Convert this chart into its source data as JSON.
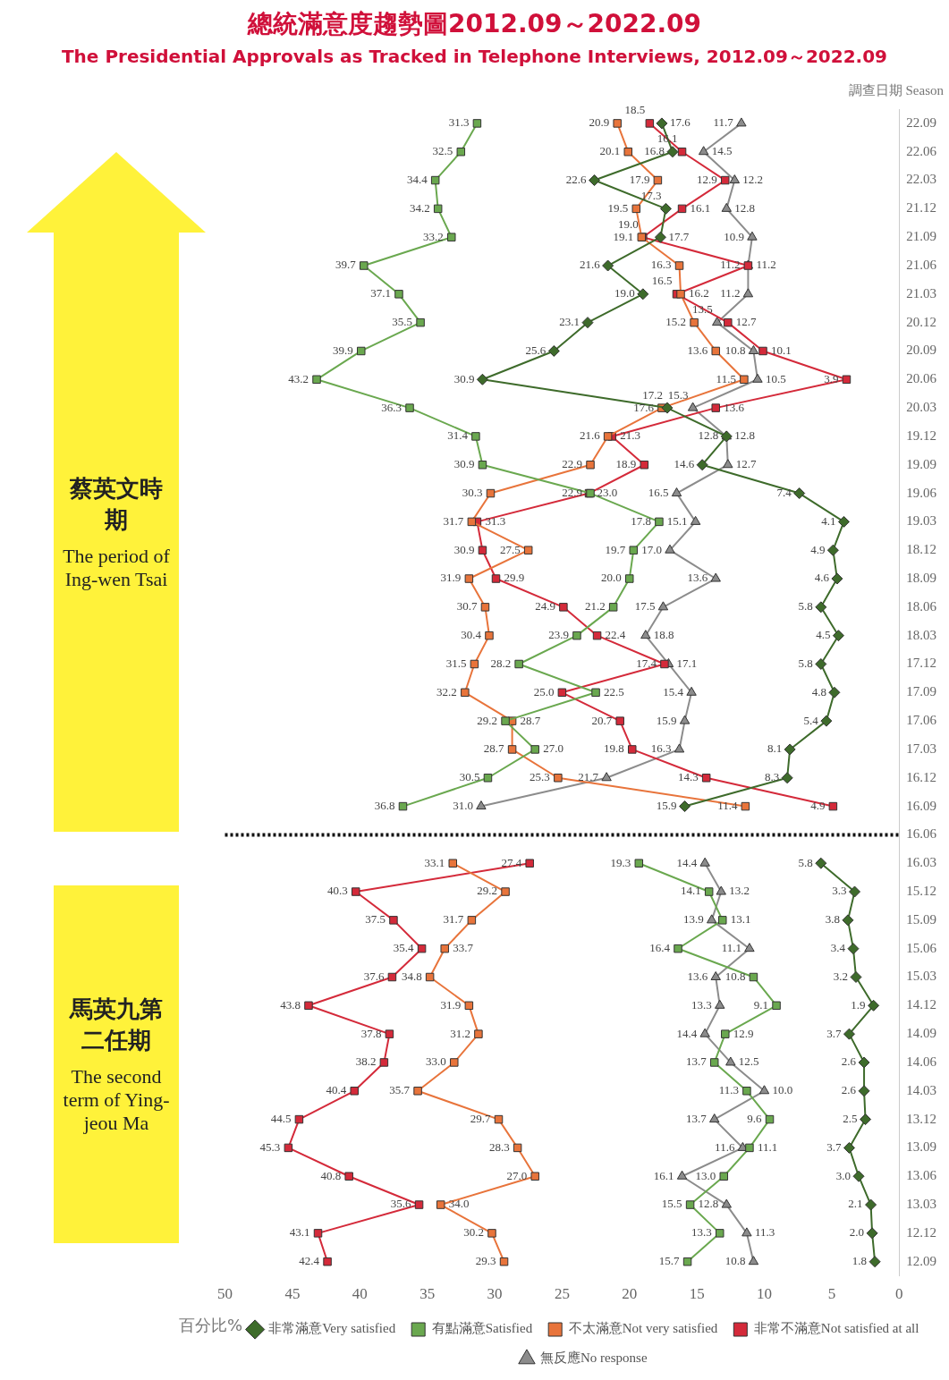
{
  "chart_data": {
    "type": "line",
    "orientation": "horizontal",
    "title": "總統滿意度趨勢圖2012.09～2022.09",
    "subtitle": "The Presidential Approvals as Tracked in Telephone Interviews, 2012.09～2022.09",
    "xlabel": "百分比%",
    "ylabel": "調查日期 Season",
    "categories": [
      "22.09",
      "22.06",
      "22.03",
      "21.12",
      "21.09",
      "21.06",
      "21.03",
      "20.12",
      "20.09",
      "20.06",
      "20.03",
      "19.12",
      "19.09",
      "19.06",
      "19.03",
      "18.12",
      "18.09",
      "18.06",
      "18.03",
      "17.12",
      "17.09",
      "17.06",
      "17.03",
      "16.12",
      "16.09",
      "16.06",
      "16.03",
      "15.12",
      "15.09",
      "15.06",
      "15.03",
      "14.12",
      "14.09",
      "14.06",
      "14.03",
      "13.12",
      "13.09",
      "13.06",
      "13.03",
      "12.12",
      "12.09"
    ],
    "series": [
      {
        "name": "非常滿意Very satisfied",
        "color": "#3e6b2b",
        "marker": "diamond",
        "values": [
          17.6,
          16.8,
          22.6,
          17.3,
          17.7,
          21.6,
          19.0,
          23.1,
          25.6,
          30.9,
          17.2,
          12.8,
          14.6,
          7.4,
          4.1,
          4.9,
          4.6,
          5.8,
          4.5,
          5.8,
          4.8,
          5.4,
          8.1,
          8.3,
          15.9,
          null,
          5.8,
          3.3,
          3.8,
          3.4,
          3.2,
          1.9,
          3.7,
          2.6,
          2.6,
          2.5,
          3.7,
          3.0,
          2.1,
          2.0,
          1.8
        ],
        "value_labels": [
          "17.6",
          "16.8",
          "22.6",
          "17.3",
          "17.7",
          "21.6",
          "19.0",
          "23.1",
          "25.6",
          "30.9",
          "17.2",
          "12.8",
          "14.6",
          "7.4",
          "4.1",
          "4.9",
          "4.6",
          "5.8",
          "4.5",
          "5.8",
          "4.8",
          "5.4",
          "8.1",
          "8.3",
          "15.9",
          null,
          "5.8",
          "3.3",
          "3.8",
          "3.4",
          "3.2",
          "1.9",
          "3.7",
          "2.6",
          "2.6",
          "2.5",
          "3.7",
          "3.0",
          "2.1",
          "2.0",
          "1.8"
        ]
      },
      {
        "name": "有點滿意Satisfied",
        "color": "#6aa84f",
        "marker": "square",
        "values": [
          31.3,
          32.5,
          34.4,
          34.2,
          33.2,
          39.7,
          37.1,
          35.5,
          39.9,
          43.2,
          36.3,
          31.4,
          30.9,
          22.9,
          17.8,
          19.7,
          20.0,
          21.2,
          23.9,
          28.2,
          22.5,
          29.2,
          27.0,
          30.5,
          36.8,
          null,
          19.3,
          14.1,
          13.1,
          16.4,
          10.8,
          9.1,
          12.9,
          13.7,
          11.3,
          9.6,
          11.1,
          13.0,
          15.5,
          13.3,
          15.7
        ],
        "value_labels": [
          "31.3",
          "32.5",
          "34.4",
          "34.2",
          "33.2",
          "39.7",
          "37.1",
          "35.5",
          "39.9",
          "43.2",
          "36.3",
          "31.4",
          "30.9",
          "22.9",
          "17.8",
          "19.7",
          "20.0",
          "21.2",
          "23.9",
          "28.2",
          "22.5",
          "29.2",
          "27.0",
          "30.5",
          "36.8",
          null,
          "19.3",
          "14.1",
          "13.1",
          "16.4",
          "10.8",
          "9.1",
          "12.9",
          "13.7",
          "11.3",
          "9.6",
          "11.1",
          "13.0",
          "15.5",
          "13.3",
          "15.7"
        ]
      },
      {
        "name": "不太滿意Not very satisfied",
        "color": "#e8743b",
        "marker": "square",
        "values": [
          20.9,
          20.1,
          17.9,
          19.5,
          19.1,
          16.3,
          16.2,
          15.2,
          13.6,
          11.5,
          17.6,
          21.6,
          22.9,
          30.3,
          31.7,
          27.5,
          31.9,
          30.7,
          30.4,
          31.5,
          32.2,
          28.7,
          28.7,
          25.3,
          11.4,
          null,
          33.1,
          29.2,
          31.7,
          33.7,
          34.8,
          31.9,
          31.2,
          33.0,
          35.7,
          29.7,
          28.3,
          27.0,
          34.0,
          30.2,
          29.3
        ],
        "value_labels": [
          "20.9",
          "20.1",
          "17.9",
          "19.5",
          "19.1",
          "16.3",
          "16.2",
          "15.2",
          "13.6",
          "11.5",
          "17.6",
          "21.6",
          "22.9",
          "30.3",
          "31.7",
          "27.5",
          "31.9",
          "30.7",
          "30.4",
          "31.5",
          "32.2",
          "28.7",
          "28.7",
          "25.3",
          "11.4",
          null,
          "33.1",
          "29.2",
          "31.7",
          "33.7",
          "34.8",
          "31.9",
          "31.2",
          "33.0",
          "35.7",
          "29.7",
          "28.3",
          "27.0",
          "34.0",
          "30.2",
          "29.3"
        ]
      },
      {
        "name": "非常不滿意Not satisfied at all",
        "color": "#d42a3a",
        "marker": "square",
        "values": [
          18.5,
          16.1,
          12.9,
          16.1,
          19.0,
          11.2,
          16.5,
          12.7,
          10.1,
          3.9,
          13.6,
          21.3,
          18.9,
          23.0,
          31.3,
          30.9,
          29.9,
          24.9,
          22.4,
          17.4,
          25.0,
          20.7,
          19.8,
          14.3,
          4.9,
          null,
          27.4,
          40.3,
          37.5,
          35.4,
          37.6,
          43.8,
          37.8,
          38.2,
          40.4,
          44.5,
          45.3,
          40.8,
          35.6,
          43.1,
          42.4
        ],
        "value_labels": [
          "18.5",
          "16.1",
          "12.9",
          "16.1",
          "19.0",
          "11.2",
          "16.5",
          "12.7",
          "10.1",
          "3.9",
          "13.6",
          "21.3",
          "18.9",
          "23.0",
          "31.3",
          "30.9",
          "29.9",
          "24.9",
          "22.4",
          "17.4",
          "25.0",
          "20.7",
          "19.8",
          "14.3",
          "4.9",
          null,
          "27.4",
          "40.3",
          "37.5",
          "35.4",
          "37.6",
          "43.8",
          "37.8",
          "38.2",
          "40.4",
          "44.5",
          "45.3",
          "40.8",
          "35.6",
          "43.1",
          "42.4"
        ]
      },
      {
        "name": "無反應No response",
        "color": "#8c8c8c",
        "marker": "triangle",
        "values": [
          11.7,
          14.5,
          12.2,
          12.8,
          10.9,
          11.2,
          11.2,
          13.5,
          10.8,
          10.5,
          15.3,
          12.8,
          12.7,
          16.5,
          15.1,
          17.0,
          13.6,
          17.5,
          18.8,
          17.1,
          15.4,
          15.9,
          16.3,
          21.7,
          31.0,
          null,
          14.4,
          13.2,
          13.9,
          11.1,
          13.6,
          13.3,
          14.4,
          12.5,
          10.0,
          13.7,
          11.6,
          16.1,
          12.8,
          11.3,
          10.8
        ],
        "value_labels": [
          "11.7",
          "14.5",
          "12.2",
          "12.8",
          "10.9",
          "11.2",
          "11.2",
          "13.5",
          "10.8",
          "10.5",
          "15.3",
          "12.8",
          "12.7",
          "16.5",
          "15.1",
          "17.0",
          "13.6",
          "17.5",
          "18.8",
          "17.1",
          "15.4",
          "15.9",
          "16.3",
          "21.7",
          "31.0",
          null,
          "14.4",
          "13.2",
          "13.9",
          "11.1",
          "13.6",
          "13.3",
          "14.4",
          "12.5",
          "10.0",
          "13.7",
          "11.6",
          "16.1",
          "12.8",
          "11.3",
          "10.8"
        ]
      }
    ],
    "xlim": [
      50,
      0
    ],
    "xticks": [
      50,
      45,
      40,
      35,
      30,
      25,
      20,
      15,
      10,
      5,
      0
    ],
    "legend": "bottom",
    "ref_lines": [
      {
        "axis": "y",
        "value": "16.06",
        "color": "#111111",
        "line_style": "dotted"
      }
    ],
    "annotations": [
      "馬英九第二任期",
      "The second term of Ying-jeou Ma",
      "蔡英文時期",
      "The period of Ing-wen Tsai"
    ]
  }
}
